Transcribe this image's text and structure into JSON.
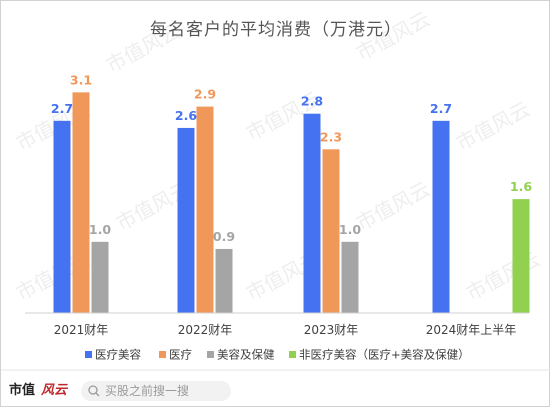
{
  "chart_data": {
    "type": "bar",
    "title": "每名客户的平均消费（万港元）",
    "categories": [
      "2021财年",
      "2022财年",
      "2023财年",
      "2024财年上半年"
    ],
    "ylim": [
      0,
      3.4
    ],
    "grid": false,
    "legend_position": "bottom",
    "series": [
      {
        "name": "医疗美容",
        "color": "#4472f0",
        "values": [
          2.7,
          2.6,
          2.8,
          2.7
        ]
      },
      {
        "name": "医疗",
        "color": "#f0985a",
        "values": [
          3.1,
          2.9,
          2.3,
          null
        ]
      },
      {
        "name": "美容及保健",
        "color": "#a5a5a5",
        "values": [
          1.0,
          0.9,
          1.0,
          null
        ]
      },
      {
        "name": "非医疗美容（医疗+美容及保健）",
        "color": "#92d050",
        "values": [
          null,
          null,
          null,
          1.6
        ]
      }
    ],
    "value_label_colors": [
      "#4472f0",
      "#f0985a",
      "#a5a5a5",
      "#92d050"
    ]
  },
  "watermark": {
    "text": "市值风云"
  },
  "footer": {
    "brand_left": "市值",
    "brand_right": "风云",
    "search_placeholder": "买股之前搜一搜"
  }
}
